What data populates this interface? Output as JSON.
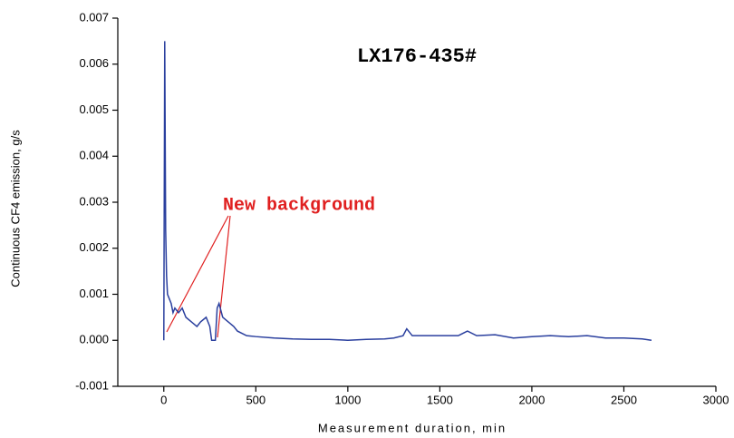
{
  "chart_data": {
    "type": "line",
    "title": "LX176-435#",
    "annotation": "New background",
    "x_label": "Measurement duration, min",
    "y_label": "Continuous CF4 emission, g/s",
    "x": [
      0,
      5,
      10,
      15,
      20,
      30,
      40,
      50,
      60,
      80,
      100,
      120,
      150,
      180,
      200,
      230,
      250,
      260,
      280,
      290,
      300,
      320,
      350,
      380,
      400,
      450,
      500,
      600,
      700,
      800,
      900,
      1000,
      1100,
      1200,
      1250,
      1300,
      1320,
      1350,
      1400,
      1500,
      1600,
      1650,
      1700,
      1800,
      1900,
      2000,
      2100,
      2200,
      2300,
      2400,
      2500,
      2600,
      2650
    ],
    "series": [
      {
        "name": "CF4",
        "color": "#2a3f9e",
        "values": [
          0,
          0.0065,
          0.0024,
          0.0014,
          0.001,
          0.0009,
          0.0008,
          0.0006,
          0.0007,
          0.0006,
          0.0007,
          0.0005,
          0.0004,
          0.0003,
          0.0004,
          0.0005,
          0.0003,
          0,
          0,
          0.0007,
          0.0008,
          0.0005,
          0.0004,
          0.0003,
          0.0002,
          0.0001,
          8e-05,
          5e-05,
          3e-05,
          2e-05,
          2e-05,
          0,
          2e-05,
          3e-05,
          5e-05,
          0.0001,
          0.00025,
          0.0001,
          0.0001,
          0.0001,
          0.0001,
          0.0002,
          0.0001,
          0.00012,
          5e-05,
          8e-05,
          0.0001,
          8e-05,
          0.0001,
          5e-05,
          5e-05,
          3e-05,
          0
        ]
      }
    ],
    "xlim": [
      -250,
      3000
    ],
    "xticks": [
      0,
      500,
      1000,
      1500,
      2000,
      2500,
      3000
    ],
    "ylim": [
      -0.001,
      0.007
    ],
    "yticks": [
      -0.001,
      {
        "value": 0,
        "label": "0.000"
      },
      0.001,
      0.002,
      0.003,
      0.004,
      0.005,
      0.006,
      0.007
    ]
  }
}
